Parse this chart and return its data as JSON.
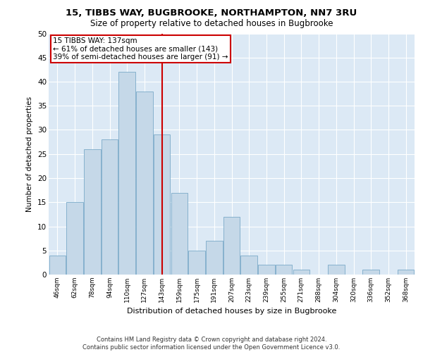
{
  "title_line1": "15, TIBBS WAY, BUGBROOKE, NORTHAMPTON, NN7 3RU",
  "title_line2": "Size of property relative to detached houses in Bugbrooke",
  "xlabel": "Distribution of detached houses by size in Bugbrooke",
  "ylabel": "Number of detached properties",
  "categories": [
    "46sqm",
    "62sqm",
    "78sqm",
    "94sqm",
    "110sqm",
    "127sqm",
    "143sqm",
    "159sqm",
    "175sqm",
    "191sqm",
    "207sqm",
    "223sqm",
    "239sqm",
    "255sqm",
    "271sqm",
    "288sqm",
    "304sqm",
    "320sqm",
    "336sqm",
    "352sqm",
    "368sqm"
  ],
  "values": [
    4,
    15,
    26,
    28,
    42,
    38,
    29,
    17,
    5,
    7,
    12,
    4,
    2,
    2,
    1,
    0,
    2,
    0,
    1,
    0,
    1
  ],
  "bar_color": "#c5d8e8",
  "bar_edgecolor": "#7aaac8",
  "vline_x": 6.5,
  "vline_color": "#cc0000",
  "annotation_text": "15 TIBBS WAY: 137sqm\n← 61% of detached houses are smaller (143)\n39% of semi-detached houses are larger (91) →",
  "annotation_box_color": "#ffffff",
  "annotation_box_edgecolor": "#cc0000",
  "ylim": [
    0,
    50
  ],
  "yticks": [
    0,
    5,
    10,
    15,
    20,
    25,
    30,
    35,
    40,
    45,
    50
  ],
  "background_color": "#dce9f5",
  "grid_color": "#ffffff",
  "footer_line1": "Contains HM Land Registry data © Crown copyright and database right 2024.",
  "footer_line2": "Contains public sector information licensed under the Open Government Licence v3.0."
}
